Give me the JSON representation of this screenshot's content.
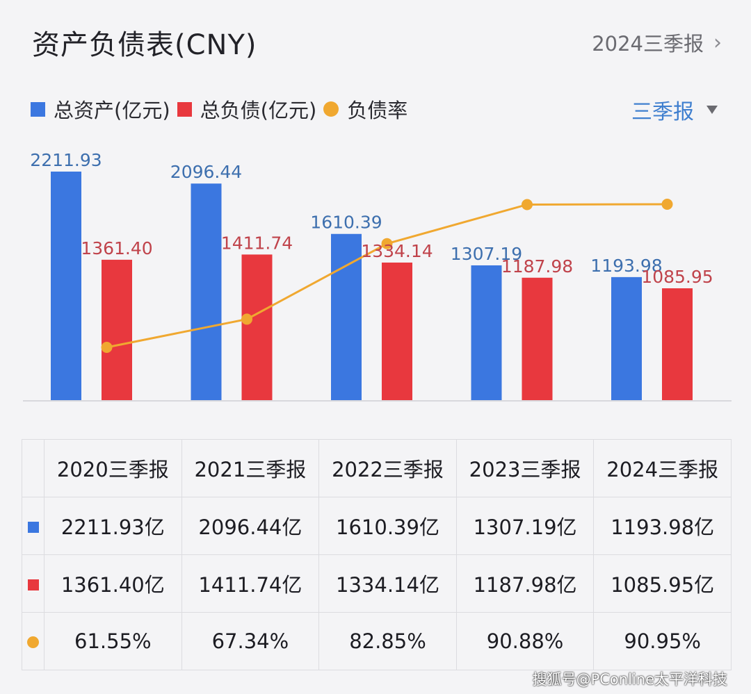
{
  "header": {
    "title": "资产负债表(CNY)",
    "period_link": "2024三季报",
    "chevron_icon": "chevron-right-icon"
  },
  "legend": {
    "items": [
      {
        "label": "总资产(亿元)",
        "color": "#3b77e0",
        "shape": "square"
      },
      {
        "label": "总负债(亿元)",
        "color": "#e8383e",
        "shape": "square"
      },
      {
        "label": "负债率",
        "color": "#f0a830",
        "shape": "circle"
      }
    ]
  },
  "dropdown": {
    "selected": "三季报",
    "color": "#3f7fcf"
  },
  "colors": {
    "assets": "#3b77e0",
    "liabilities": "#e8383e",
    "ratio": "#f0a830",
    "assets_label": "#3d6fae",
    "liabilities_label": "#c0434b"
  },
  "chart_data": {
    "type": "bar",
    "title": "资产负债表(CNY)",
    "categories": [
      "2020三季报",
      "2021三季报",
      "2022三季报",
      "2023三季报",
      "2024三季报"
    ],
    "series": [
      {
        "name": "总资产(亿元)",
        "type": "bar",
        "values": [
          2211.93,
          2096.44,
          1610.39,
          1307.19,
          1193.98
        ],
        "labels": [
          "2211.93",
          "2096.44",
          "1610.39",
          "1307.19",
          "1193.98"
        ]
      },
      {
        "name": "总负债(亿元)",
        "type": "bar",
        "values": [
          1361.4,
          1411.74,
          1334.14,
          1187.98,
          1085.95
        ],
        "labels": [
          "1361.40",
          "1411.74",
          "1334.14",
          "1187.98",
          "1085.95"
        ]
      },
      {
        "name": "负债率",
        "type": "line",
        "unit": "%",
        "values": [
          61.55,
          67.34,
          82.85,
          90.88,
          90.95
        ]
      }
    ],
    "xlabel": "",
    "ylabel": "",
    "grid": false,
    "legend": "top-left"
  },
  "table": {
    "headers": [
      "2020三季报",
      "2021三季报",
      "2022三季报",
      "2023三季报",
      "2024三季报"
    ],
    "rows": [
      {
        "marker": "square",
        "color": "#3b77e0",
        "cells": [
          "2211.93亿",
          "2096.44亿",
          "1610.39亿",
          "1307.19亿",
          "1193.98亿"
        ]
      },
      {
        "marker": "square",
        "color": "#e8383e",
        "cells": [
          "1361.40亿",
          "1411.74亿",
          "1334.14亿",
          "1187.98亿",
          "1085.95亿"
        ]
      },
      {
        "marker": "circle",
        "color": "#f0a830",
        "cells": [
          "61.55%",
          "67.34%",
          "82.85%",
          "90.88%",
          "90.95%"
        ]
      }
    ]
  },
  "watermark": "搜狐号@PConline太平洋科技"
}
